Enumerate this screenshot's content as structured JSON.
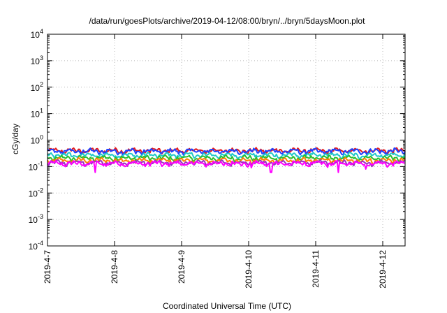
{
  "chart_data": {
    "type": "line",
    "title": "/data/run/goesPlots/archive/2019-04-12/08:00/bryn/../bryn/5daysMoon.plot",
    "xlabel": "Coordinated Universal Time (UTC)",
    "ylabel": "cGy/day",
    "yscale": "log",
    "ylim": [
      0.0001,
      10000
    ],
    "y_ticks": [
      {
        "base": "10",
        "exp": "4"
      },
      {
        "base": "10",
        "exp": "3"
      },
      {
        "base": "10",
        "exp": "2"
      },
      {
        "base": "10",
        "exp": "1"
      },
      {
        "base": "10",
        "exp": "0"
      },
      {
        "base": "10",
        "exp": "-1"
      },
      {
        "base": "10",
        "exp": "-2"
      },
      {
        "base": "10",
        "exp": "-3"
      },
      {
        "base": "10",
        "exp": "-4"
      }
    ],
    "x_range": [
      "2019-04-07",
      "2019-04-12 08:00"
    ],
    "x_ticks": [
      "2019-4-7",
      "2019-4-8",
      "2019-4-9",
      "2019-4-10",
      "2019-4-11",
      "2019-4-12"
    ],
    "grid": true,
    "legend": "none",
    "series": [
      {
        "color": "#e41a1c",
        "typical": 0.4,
        "amplitude": 0.12,
        "dips": [
          [
            "2019-04-10 07:00",
            0.5
          ],
          [
            "2019-04-10 14:00",
            0.45
          ]
        ]
      },
      {
        "color": "#2040ff",
        "typical": 0.38,
        "amplitude": 0.12,
        "dips": [
          [
            "2019-04-10 07:00",
            0.55
          ],
          [
            "2019-04-10 14:00",
            0.5
          ]
        ]
      },
      {
        "color": "#20c8c8",
        "typical": 0.27,
        "amplitude": 0.09,
        "dips": [
          [
            "2019-04-10 07:00",
            0.45
          ]
        ]
      },
      {
        "color": "#2cbf2c",
        "typical": 0.21,
        "amplitude": 0.07,
        "dips": []
      },
      {
        "color": "#ff7f00",
        "typical": 0.17,
        "amplitude": 0.06,
        "dips": []
      },
      {
        "color": "#9b30c0",
        "typical": 0.14,
        "amplitude": 0.06,
        "dips": []
      },
      {
        "color": "#ff00ff",
        "typical": 0.13,
        "amplitude": 0.08,
        "dips": [
          [
            "2019-04-07 17:00",
            0.06
          ],
          [
            "2019-04-10 01:00",
            0.09
          ],
          [
            "2019-04-10 08:00",
            0.06
          ],
          [
            "2019-04-11 08:00",
            0.06
          ],
          [
            "2019-04-11 18:00",
            0.08
          ]
        ]
      }
    ]
  }
}
